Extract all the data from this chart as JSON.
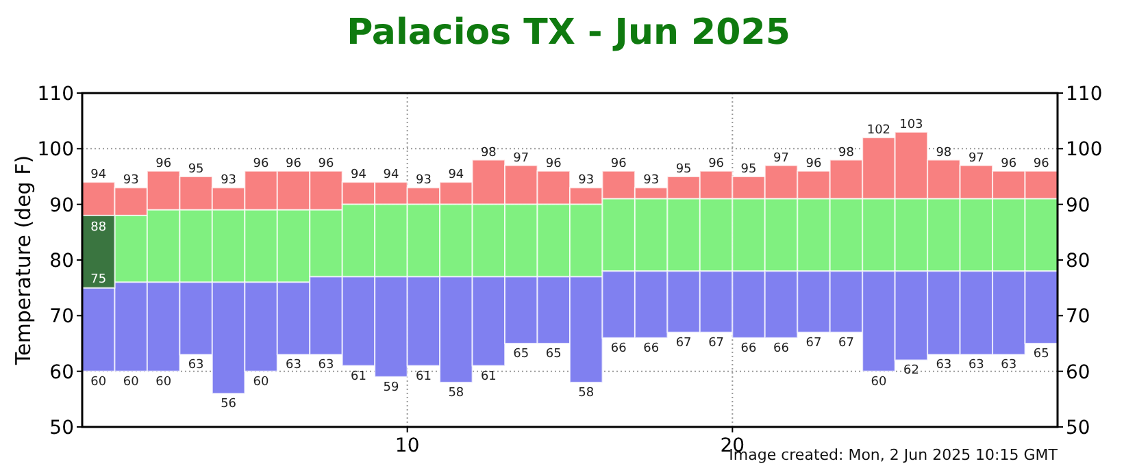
{
  "chart_data": {
    "type": "bar",
    "title": "Palacios TX - Jun 2025",
    "ylabel": "Temperature (deg F)",
    "xlim": [
      0,
      30
    ],
    "xticks": [
      10,
      20
    ],
    "ylim": [
      50,
      110
    ],
    "yticks": [
      50,
      60,
      70,
      80,
      90,
      100,
      110
    ],
    "y2lim": [
      50,
      110
    ],
    "y2ticks": [
      50,
      60,
      70,
      80,
      90,
      100,
      110
    ],
    "grid": true,
    "x": [
      0.5,
      1.5,
      2.5,
      3.5,
      4.5,
      5.5,
      6.5,
      7.5,
      8.5,
      9.5,
      10.5,
      11.5,
      12.5,
      13.5,
      14.5,
      15.5,
      16.5,
      17.5,
      18.5,
      19.5,
      20.5,
      21.5,
      22.5,
      23.5,
      24.5,
      25.5,
      26.5,
      27.5,
      28.5,
      29.5
    ],
    "series": [
      {
        "color": "#f88080",
        "base": [
          88,
          88,
          89,
          89,
          89,
          89,
          89,
          89,
          90,
          90,
          90,
          90,
          90,
          90,
          90,
          90,
          91,
          91,
          91,
          91,
          91,
          91,
          91,
          91,
          91,
          91,
          91,
          91,
          91,
          91
        ],
        "values": [
          6,
          5,
          7,
          6,
          4,
          7,
          7,
          7,
          4,
          4,
          3,
          4,
          8,
          7,
          6,
          3,
          5,
          2,
          4,
          5,
          4,
          6,
          5,
          7,
          11,
          12,
          7,
          6,
          5,
          5
        ],
        "value_labels": [
          "94",
          "93",
          "96",
          "95",
          "93",
          "96",
          "96",
          "96",
          "94",
          "94",
          "93",
          "94",
          "98",
          "97",
          "96",
          "93",
          "96",
          "93",
          "95",
          "96",
          "95",
          "97",
          "96",
          "98",
          "102",
          "103",
          "98",
          "97",
          "96",
          "96"
        ]
      },
      {
        "color": "#80f080",
        "base": [
          null,
          76,
          76,
          76,
          76,
          76,
          76,
          77,
          77,
          77,
          77,
          77,
          77,
          77,
          77,
          77,
          78,
          78,
          78,
          78,
          78,
          78,
          78,
          78,
          78,
          78,
          78,
          78,
          78,
          78
        ],
        "values": [
          null,
          12,
          13,
          13,
          13,
          13,
          13,
          12,
          13,
          13,
          13,
          13,
          13,
          13,
          13,
          13,
          13,
          13,
          13,
          13,
          13,
          13,
          13,
          13,
          13,
          13,
          13,
          13,
          13,
          13
        ]
      },
      {
        "color": "#8080f0",
        "base": [
          75,
          76,
          76,
          76,
          76,
          76,
          76,
          77,
          77,
          77,
          77,
          77,
          77,
          77,
          77,
          77,
          78,
          78,
          78,
          78,
          78,
          78,
          78,
          78,
          78,
          78,
          78,
          78,
          78,
          78
        ],
        "values": [
          -15,
          -16,
          -16,
          -13,
          -20,
          -16,
          -13,
          -14,
          -16,
          -18,
          -16,
          -19,
          -16,
          -12,
          -12,
          -19,
          -12,
          -12,
          -11,
          -11,
          -12,
          -12,
          -11,
          -11,
          -18,
          -16,
          -15,
          -15,
          -15,
          -13
        ],
        "value_labels": [
          "60",
          "60",
          "60",
          "63",
          "56",
          "60",
          "63",
          "63",
          "61",
          "59",
          "61",
          "58",
          "61",
          "65",
          "65",
          "58",
          "66",
          "66",
          "67",
          "67",
          "66",
          "66",
          "67",
          "67",
          "60",
          "62",
          "63",
          "63",
          "63",
          "65"
        ]
      },
      {
        "color": "#3a7540",
        "base": [
          75,
          null,
          null,
          null,
          null,
          null,
          null,
          null,
          null,
          null,
          null,
          null,
          null,
          null,
          null,
          null,
          null,
          null,
          null,
          null,
          null,
          null,
          null,
          null,
          null,
          null,
          null,
          null,
          null,
          null
        ],
        "values": [
          13,
          null,
          null,
          null,
          null,
          null,
          null,
          null,
          null,
          null,
          null,
          null,
          null,
          null,
          null,
          null,
          null,
          null,
          null,
          null,
          null,
          null,
          null,
          null,
          null,
          null,
          null,
          null,
          null,
          null
        ],
        "value_labels": [
          "88",
          null,
          null,
          null,
          null,
          null,
          null,
          null,
          null,
          null,
          null,
          null,
          null,
          null,
          null,
          null,
          null,
          null,
          null,
          null,
          null,
          null,
          null,
          null,
          null,
          null,
          null,
          null,
          null,
          null
        ]
      }
    ],
    "annotations": [
      {
        "text": "75",
        "x": 0.5,
        "y": 75
      },
      "Image created: Mon, 2 Jun 2025 10:15 GMT"
    ]
  }
}
